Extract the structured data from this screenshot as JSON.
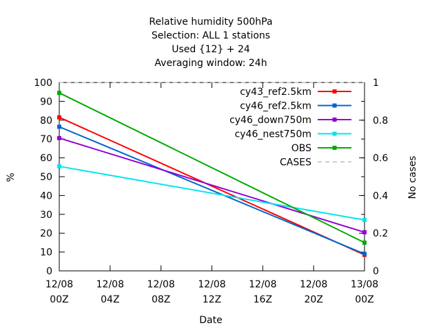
{
  "chart_data": {
    "type": "line",
    "title_lines": [
      "Relative humidity 500hPa",
      "Selection: ALL       1 stations",
      "Used {12} + 24",
      "Averaging window: 24h"
    ],
    "xlabel": "Date",
    "ylabel": "%",
    "y2label": "No cases",
    "x_ticks": [
      {
        "top": "12/08",
        "bottom": "00Z"
      },
      {
        "top": "12/08",
        "bottom": "04Z"
      },
      {
        "top": "12/08",
        "bottom": "08Z"
      },
      {
        "top": "12/08",
        "bottom": "12Z"
      },
      {
        "top": "12/08",
        "bottom": "16Z"
      },
      {
        "top": "12/08",
        "bottom": "20Z"
      },
      {
        "top": "13/08",
        "bottom": "00Z"
      }
    ],
    "xlim": [
      0,
      24
    ],
    "ylim": [
      0,
      100
    ],
    "y_ticks": [
      "0",
      "10",
      "20",
      "30",
      "40",
      "50",
      "60",
      "70",
      "80",
      "90",
      "100"
    ],
    "y2lim": [
      0,
      1
    ],
    "y2_ticks": [
      "0",
      "0.2",
      "0.4",
      "0.6",
      "0.8",
      "1"
    ],
    "legend_position": "top-right",
    "series": [
      {
        "name": "cy43_ref2.5km",
        "color": "#ff0000",
        "x": [
          0,
          24
        ],
        "y": [
          81.5,
          8.5
        ]
      },
      {
        "name": "cy46_ref2.5km",
        "color": "#0066cc",
        "x": [
          0,
          24
        ],
        "y": [
          76.5,
          9.0
        ]
      },
      {
        "name": "cy46_down750m",
        "color": "#9400d3",
        "x": [
          0,
          24
        ],
        "y": [
          70.5,
          20.5
        ]
      },
      {
        "name": "cy46_nest750m",
        "color": "#00e5ee",
        "x": [
          0,
          24
        ],
        "y": [
          55.5,
          27.0
        ]
      },
      {
        "name": "OBS",
        "color": "#00aa00",
        "x": [
          0,
          24
        ],
        "y": [
          94.5,
          15.0
        ]
      },
      {
        "name": "CASES",
        "color": "#a0a0a0",
        "dashed": true,
        "axis": "y2",
        "x": [
          0,
          24
        ],
        "y": [
          1,
          1
        ]
      }
    ]
  }
}
